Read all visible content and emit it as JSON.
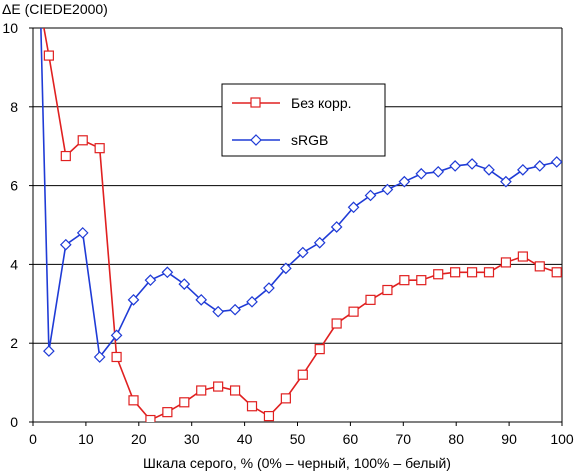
{
  "chart_data": {
    "type": "line",
    "title": "",
    "ylabel": "ΔE (CIEDE2000)",
    "xlabel": "Шкала серого, % (0% – черный, 100% – белый)",
    "xlim": [
      0,
      100
    ],
    "ylim": [
      0,
      10
    ],
    "xticks": [
      0,
      10,
      20,
      30,
      40,
      50,
      60,
      70,
      80,
      90,
      100
    ],
    "yticks": [
      0,
      2,
      4,
      6,
      8,
      10
    ],
    "grid": "horizontal",
    "legend_placement": "upper-center",
    "series": [
      {
        "name": "Без корр.",
        "color": "#e02020",
        "marker": "square",
        "x": [
          1.4,
          3,
          6.2,
          9.4,
          12.6,
          15.8,
          19,
          22.2,
          25.4,
          28.6,
          31.8,
          35,
          38.2,
          41.4,
          44.6,
          47.8,
          51,
          54.2,
          57.4,
          60.6,
          63.8,
          67,
          70.2,
          73.4,
          76.6,
          79.8,
          83,
          86.2,
          89.4,
          92.6,
          95.8,
          99
        ],
        "y": [
          10.5,
          9.3,
          6.75,
          7.15,
          6.95,
          1.65,
          0.55,
          0.05,
          0.25,
          0.5,
          0.8,
          0.9,
          0.8,
          0.4,
          0.15,
          0.6,
          1.2,
          1.85,
          2.5,
          2.8,
          3.1,
          3.35,
          3.6,
          3.6,
          3.75,
          3.8,
          3.8,
          3.8,
          4.05,
          4.2,
          3.95,
          3.8
        ]
      },
      {
        "name": "sRGB",
        "color": "#1f3bd6",
        "marker": "diamond",
        "x": [
          1.4,
          3,
          6.2,
          9.4,
          12.6,
          15.8,
          19,
          22.2,
          25.4,
          28.6,
          31.8,
          35,
          38.2,
          41.4,
          44.6,
          47.8,
          51,
          54.2,
          57.4,
          60.6,
          63.8,
          67,
          70.2,
          73.4,
          76.6,
          79.8,
          83,
          86.2,
          89.4,
          92.6,
          95.8,
          99
        ],
        "y": [
          10.5,
          1.8,
          4.5,
          4.8,
          1.65,
          2.2,
          3.1,
          3.6,
          3.8,
          3.5,
          3.1,
          2.8,
          2.85,
          3.05,
          3.4,
          3.9,
          4.3,
          4.55,
          4.95,
          5.45,
          5.75,
          5.9,
          6.1,
          6.3,
          6.35,
          6.5,
          6.55,
          6.4,
          6.1,
          6.4,
          6.5,
          6.6
        ]
      }
    ]
  }
}
